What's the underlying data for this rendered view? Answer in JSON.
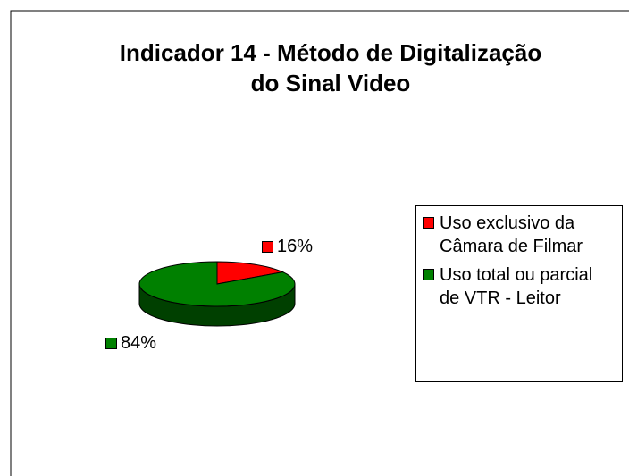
{
  "chart_data": {
    "type": "pie3d",
    "title": "Indicador 14 - Método de Digitalização do Sinal Video",
    "categories": [
      "Uso exclusivo da Câmara de Filmar",
      "Uso total ou parcial de VTR - Leitor"
    ],
    "values": [
      16,
      84
    ],
    "value_labels": [
      "16%",
      "84%"
    ],
    "colors": [
      "#ff0000",
      "#008000"
    ],
    "legend": "right"
  }
}
